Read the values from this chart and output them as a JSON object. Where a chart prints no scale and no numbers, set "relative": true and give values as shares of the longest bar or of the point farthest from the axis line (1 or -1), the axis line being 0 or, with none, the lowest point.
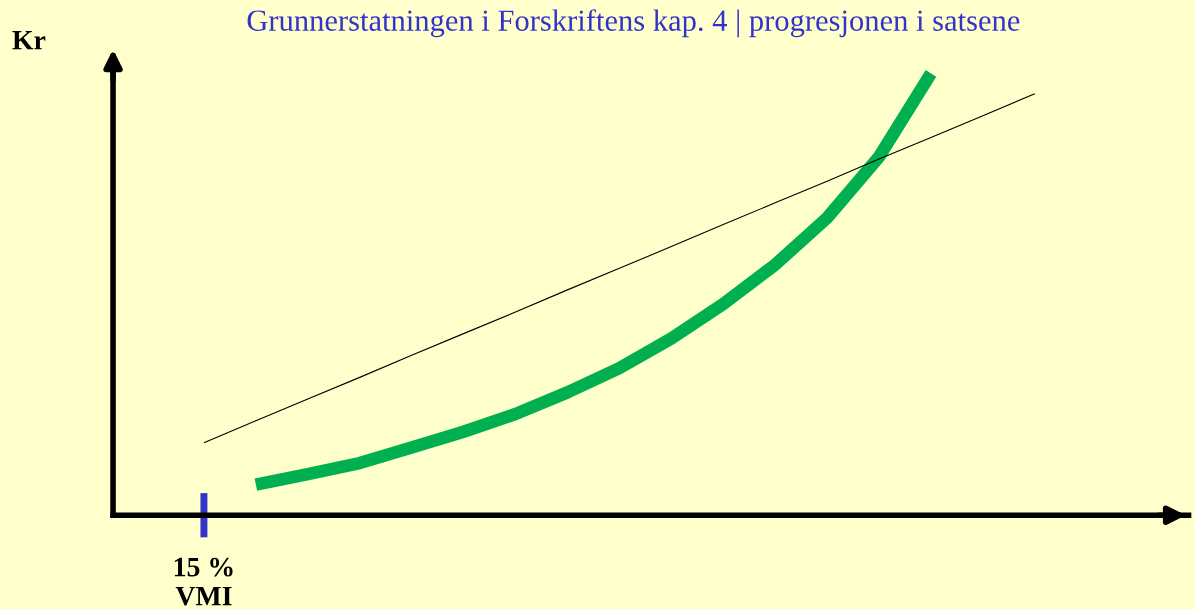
{
  "chart_data": {
    "type": "line",
    "title": "Grunnerstatningen i Forskriftens kap. 4 | progresjonen i satsene",
    "ylabel": "Kr",
    "relative": true,
    "categories": [
      null,
      null,
      null,
      null,
      null,
      null,
      null,
      null,
      null,
      null,
      null,
      null,
      null,
      null,
      null,
      null,
      null
    ],
    "annotations": [
      "15 %\nVMI"
    ],
    "series": [
      {
        "color": "#00b050",
        "values": [
          null,
          0.069,
          0.093,
          0.118,
          0.153,
          0.189,
          0.229,
          0.278,
          0.333,
          0.4,
          0.478,
          0.567,
          0.673,
          0.811,
          1,
          null,
          null
        ]
      },
      {
        "color": "#000000",
        "values": [
          0.164,
          0.214,
          0.263,
          0.312,
          0.362,
          0.411,
          0.46,
          0.51,
          0.559,
          0.608,
          0.658,
          0.707,
          0.756,
          0.806,
          0.855,
          0.904,
          0.954
        ]
      }
    ],
    "grid": false,
    "legend": false,
    "marker": "none",
    "line_style": "solid"
  }
}
